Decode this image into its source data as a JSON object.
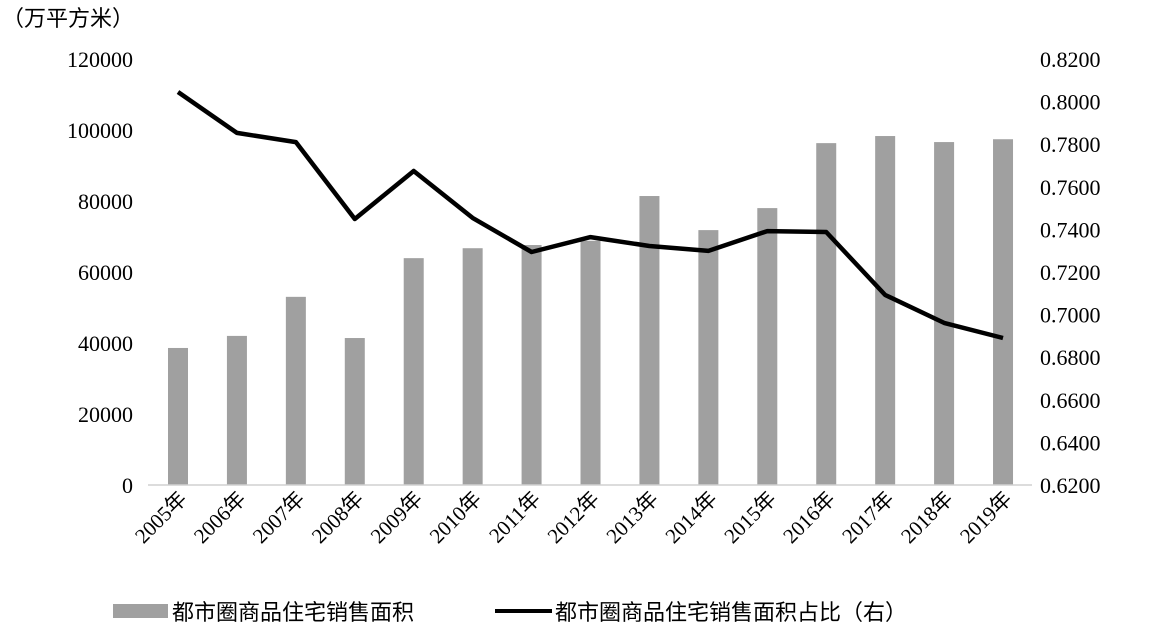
{
  "chart_data": {
    "type": "bar+line",
    "unit_label": "（万平方米）",
    "categories": [
      "2005年",
      "2006年",
      "2007年",
      "2008年",
      "2009年",
      "2010年",
      "2011年",
      "2012年",
      "2013年",
      "2014年",
      "2015年",
      "2016年",
      "2017年",
      "2018年",
      "2019年"
    ],
    "series": [
      {
        "name": "都市圈商品住宅销售面积",
        "type": "bar",
        "axis": "left",
        "color": "#a0a0a0",
        "values": [
          38600,
          42000,
          53000,
          41400,
          63900,
          66700,
          67600,
          68800,
          81400,
          71800,
          78000,
          96300,
          98300,
          96600,
          97400
        ]
      },
      {
        "name": "都市圈商品住宅销售面积占比（右）",
        "type": "line",
        "axis": "right",
        "color": "#000000",
        "values": [
          0.8045,
          0.7853,
          0.781,
          0.7449,
          0.7674,
          0.7454,
          0.7294,
          0.7364,
          0.7322,
          0.7299,
          0.7392,
          0.7388,
          0.7092,
          0.6961,
          0.689
        ]
      }
    ],
    "left_axis": {
      "ylim": [
        0,
        120000
      ],
      "ticks": [
        "0",
        "20000",
        "40000",
        "60000",
        "80000",
        "100000",
        "120000"
      ]
    },
    "right_axis": {
      "ylim": [
        0.62,
        0.82
      ],
      "ticks": [
        "0.6200",
        "0.6400",
        "0.6600",
        "0.6800",
        "0.7000",
        "0.7200",
        "0.7400",
        "0.7600",
        "0.7800",
        "0.8000",
        "0.8200"
      ]
    },
    "grid": false,
    "legend_position": "bottom"
  }
}
